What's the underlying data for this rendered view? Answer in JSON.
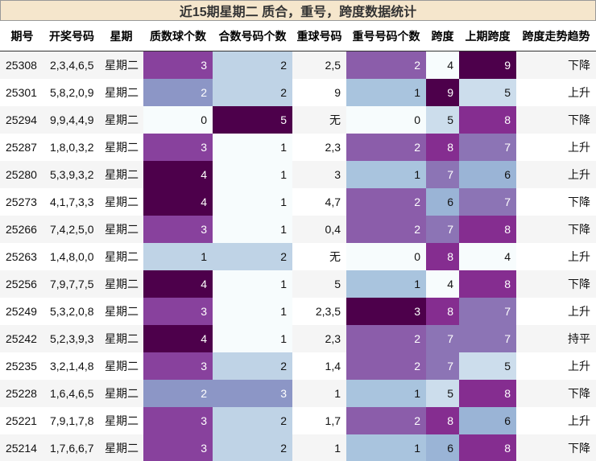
{
  "header": {
    "title": "近15期星期二 质合，重号，跨度数据统计"
  },
  "table": {
    "columns": [
      "期号",
      "开奖号码",
      "星期",
      "质数球个数",
      "合数号码个数",
      "重球号码",
      "重号号码个数",
      "跨度",
      "上期跨度",
      "跨度走势趋势"
    ],
    "rows": [
      [
        "25308",
        "2,3,4,6,5",
        "星期二",
        3,
        2,
        "2,5",
        2,
        4,
        9,
        "下降"
      ],
      [
        "25301",
        "5,8,2,0,9",
        "星期二",
        2,
        2,
        "9",
        1,
        9,
        5,
        "上升"
      ],
      [
        "25294",
        "9,9,4,4,9",
        "星期二",
        0,
        5,
        "无",
        0,
        5,
        8,
        "下降"
      ],
      [
        "25287",
        "1,8,0,3,2",
        "星期二",
        3,
        1,
        "2,3",
        2,
        8,
        7,
        "上升"
      ],
      [
        "25280",
        "5,3,9,3,2",
        "星期二",
        4,
        1,
        "3",
        1,
        7,
        6,
        "上升"
      ],
      [
        "25273",
        "4,1,7,3,3",
        "星期二",
        4,
        1,
        "4,7",
        2,
        6,
        7,
        "下降"
      ],
      [
        "25266",
        "7,4,2,5,0",
        "星期二",
        3,
        1,
        "0,4",
        2,
        7,
        8,
        "下降"
      ],
      [
        "25263",
        "1,4,8,0,0",
        "星期二",
        1,
        2,
        "无",
        0,
        8,
        4,
        "上升"
      ],
      [
        "25256",
        "7,9,7,7,5",
        "星期二",
        4,
        1,
        "5",
        1,
        4,
        8,
        "下降"
      ],
      [
        "25249",
        "5,3,2,0,8",
        "星期二",
        3,
        1,
        "2,3,5",
        3,
        8,
        7,
        "上升"
      ],
      [
        "25242",
        "5,2,3,9,3",
        "星期二",
        4,
        1,
        "2,3",
        2,
        7,
        7,
        "持平"
      ],
      [
        "25235",
        "3,2,1,4,8",
        "星期二",
        3,
        2,
        "1,4",
        2,
        7,
        5,
        "上升"
      ],
      [
        "25228",
        "1,6,4,6,5",
        "星期二",
        2,
        3,
        "1",
        1,
        5,
        8,
        "下降"
      ],
      [
        "25221",
        "7,9,1,7,8",
        "星期二",
        3,
        2,
        "1,7",
        2,
        8,
        6,
        "上升"
      ],
      [
        "25214",
        "1,7,6,6,7",
        "星期二",
        3,
        2,
        "1",
        1,
        6,
        8,
        "下降"
      ]
    ]
  }
}
